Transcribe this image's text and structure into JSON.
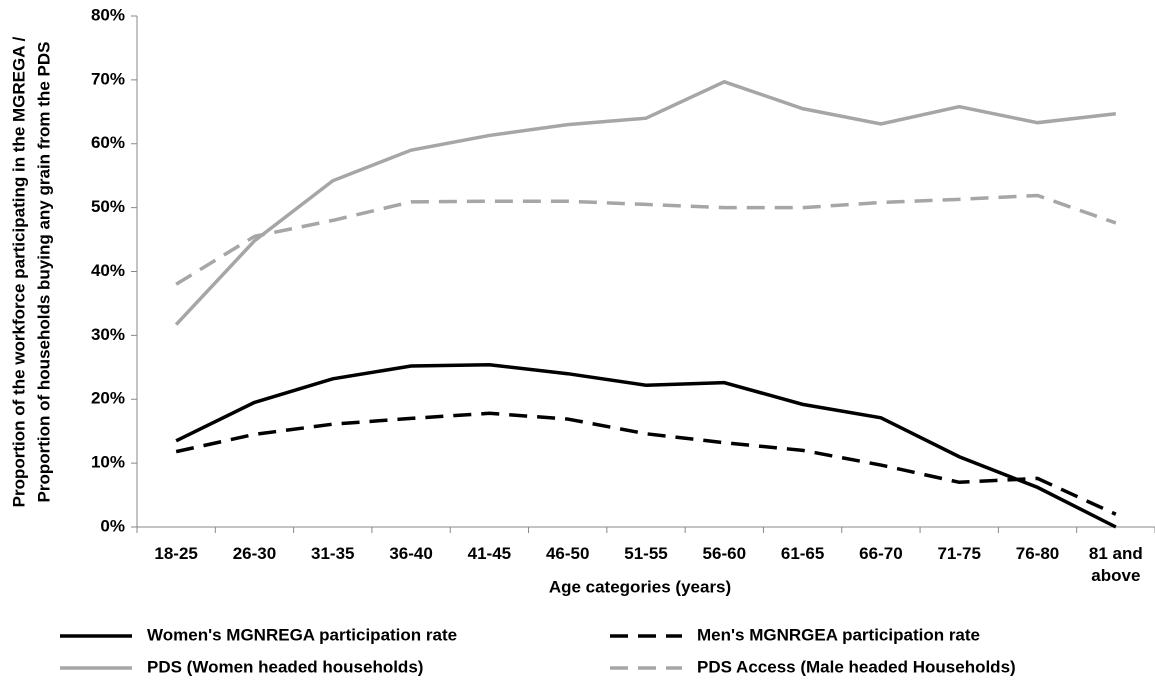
{
  "chart_data": {
    "type": "line",
    "xlabel": "Age categories (years)",
    "ylabel": [
      "Proportion of the workforce participating  in the MGREGA /",
      "Proportion of households buying any grain from the PDS"
    ],
    "categories": [
      "18-25",
      "26-30",
      "31-35",
      "36-40",
      "41-45",
      "46-50",
      "51-55",
      "56-60",
      "61-65",
      "66-70",
      "71-75",
      "76-80",
      "81 and above"
    ],
    "series": [
      {
        "name": "Women's MGNREGA participation rate",
        "color": "#000000",
        "dash": "solid",
        "values": [
          13.5,
          19.5,
          23.2,
          25.2,
          25.4,
          24,
          22.2,
          22.6,
          19.2,
          17.1,
          11,
          6.2,
          0
        ]
      },
      {
        "name": "Men's MGNRGEA participation rate",
        "color": "#000000",
        "dash": "dashed",
        "values": [
          11.8,
          14.5,
          16.1,
          17,
          17.8,
          16.9,
          14.6,
          13.2,
          12,
          9.7,
          7,
          7.6,
          2
        ]
      },
      {
        "name": "PDS (Women headed households)",
        "color": "#a6a6a6",
        "dash": "solid",
        "values": [
          31.7,
          44.8,
          54.2,
          59,
          61.3,
          63,
          64,
          69.7,
          65.5,
          63.1,
          65.8,
          63.3,
          64.7
        ]
      },
      {
        "name": "PDS Access (Male headed Households)",
        "color": "#a6a6a6",
        "dash": "dashed",
        "values": [
          38,
          45.5,
          48,
          50.9,
          51,
          51,
          50.5,
          50,
          50,
          50.8,
          51.3,
          51.9,
          47.6
        ]
      }
    ],
    "ylim": [
      0,
      80
    ],
    "yticks": [
      {
        "value": 0,
        "label": "0%"
      },
      {
        "value": 10,
        "label": "10%"
      },
      {
        "value": 20,
        "label": "20%"
      },
      {
        "value": 30,
        "label": "30%"
      },
      {
        "value": 40,
        "label": "40%"
      },
      {
        "value": 50,
        "label": "50%"
      },
      {
        "value": 60,
        "label": "60%"
      },
      {
        "value": 70,
        "label": "70%"
      },
      {
        "value": 80,
        "label": "80%"
      }
    ],
    "grid": false,
    "legend": "bottom"
  }
}
